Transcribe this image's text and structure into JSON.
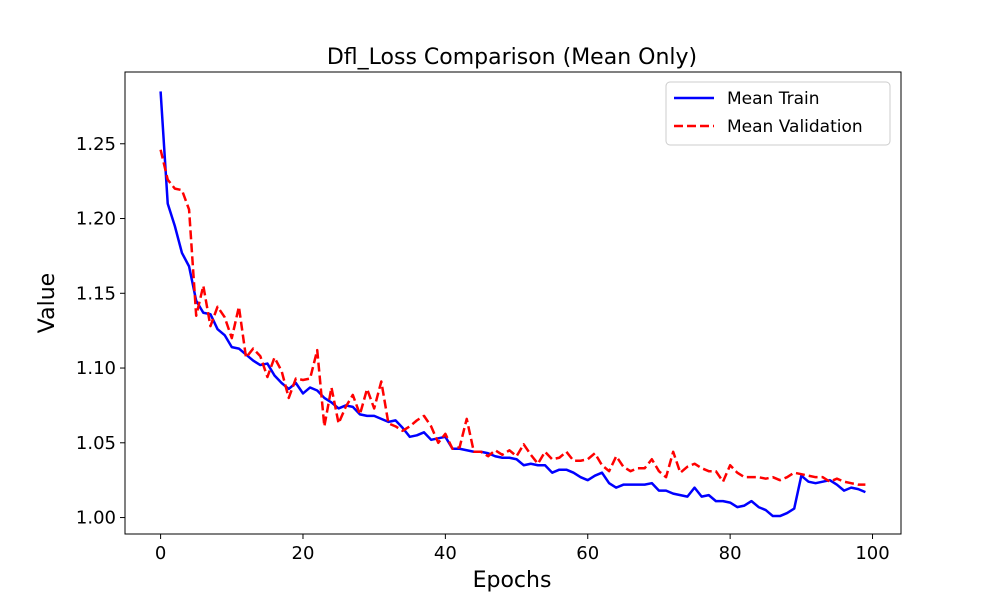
{
  "chart_data": {
    "type": "line",
    "title": "Dfl_Loss Comparison (Mean Only)",
    "xlabel": "Epochs",
    "ylabel": "Value",
    "xlim": [
      -5,
      104
    ],
    "ylim": [
      0.989,
      1.298
    ],
    "xticks": [
      0,
      20,
      40,
      60,
      80,
      100
    ],
    "yticks": [
      1.0,
      1.05,
      1.1,
      1.15,
      1.2,
      1.25
    ],
    "xtick_labels": [
      "0",
      "20",
      "40",
      "60",
      "80",
      "100"
    ],
    "ytick_labels": [
      "1.00",
      "1.05",
      "1.10",
      "1.15",
      "1.20",
      "1.25"
    ],
    "grid": false,
    "legend_position": "top-right",
    "series": [
      {
        "name": "Mean Train",
        "color": "#0000ff",
        "style": "solid",
        "values": [
          1.285,
          1.21,
          1.195,
          1.177,
          1.168,
          1.145,
          1.137,
          1.136,
          1.126,
          1.122,
          1.114,
          1.113,
          1.109,
          1.105,
          1.102,
          1.103,
          1.095,
          1.09,
          1.086,
          1.09,
          1.083,
          1.087,
          1.085,
          1.08,
          1.077,
          1.073,
          1.075,
          1.074,
          1.069,
          1.068,
          1.068,
          1.066,
          1.064,
          1.065,
          1.06,
          1.054,
          1.055,
          1.057,
          1.052,
          1.053,
          1.054,
          1.046,
          1.046,
          1.045,
          1.044,
          1.044,
          1.043,
          1.041,
          1.04,
          1.04,
          1.039,
          1.035,
          1.036,
          1.035,
          1.035,
          1.03,
          1.032,
          1.032,
          1.03,
          1.027,
          1.025,
          1.028,
          1.03,
          1.023,
          1.02,
          1.022,
          1.022,
          1.022,
          1.022,
          1.023,
          1.018,
          1.018,
          1.016,
          1.015,
          1.014,
          1.02,
          1.014,
          1.015,
          1.011,
          1.011,
          1.01,
          1.007,
          1.008,
          1.011,
          1.007,
          1.005,
          1.001,
          1.001,
          1.003,
          1.006,
          1.028,
          1.024,
          1.023,
          1.024,
          1.025,
          1.022,
          1.018,
          1.02,
          1.019,
          1.017
        ]
      },
      {
        "name": "Mean Validation",
        "color": "#ff0000",
        "style": "dashed",
        "values": [
          1.246,
          1.226,
          1.22,
          1.219,
          1.206,
          1.135,
          1.155,
          1.128,
          1.141,
          1.134,
          1.12,
          1.141,
          1.107,
          1.113,
          1.108,
          1.094,
          1.107,
          1.098,
          1.08,
          1.093,
          1.092,
          1.093,
          1.112,
          1.061,
          1.087,
          1.063,
          1.074,
          1.082,
          1.069,
          1.086,
          1.073,
          1.091,
          1.063,
          1.061,
          1.058,
          1.061,
          1.065,
          1.068,
          1.061,
          1.05,
          1.056,
          1.046,
          1.047,
          1.066,
          1.044,
          1.044,
          1.041,
          1.045,
          1.042,
          1.045,
          1.041,
          1.049,
          1.042,
          1.036,
          1.044,
          1.039,
          1.04,
          1.044,
          1.038,
          1.038,
          1.039,
          1.043,
          1.035,
          1.031,
          1.041,
          1.034,
          1.031,
          1.033,
          1.033,
          1.039,
          1.031,
          1.027,
          1.044,
          1.03,
          1.034,
          1.036,
          1.033,
          1.031,
          1.031,
          1.024,
          1.035,
          1.03,
          1.027,
          1.027,
          1.027,
          1.026,
          1.027,
          1.025,
          1.027,
          1.03,
          1.029,
          1.028,
          1.027,
          1.027,
          1.024,
          1.026,
          1.024,
          1.023,
          1.022,
          1.022
        ]
      }
    ]
  }
}
